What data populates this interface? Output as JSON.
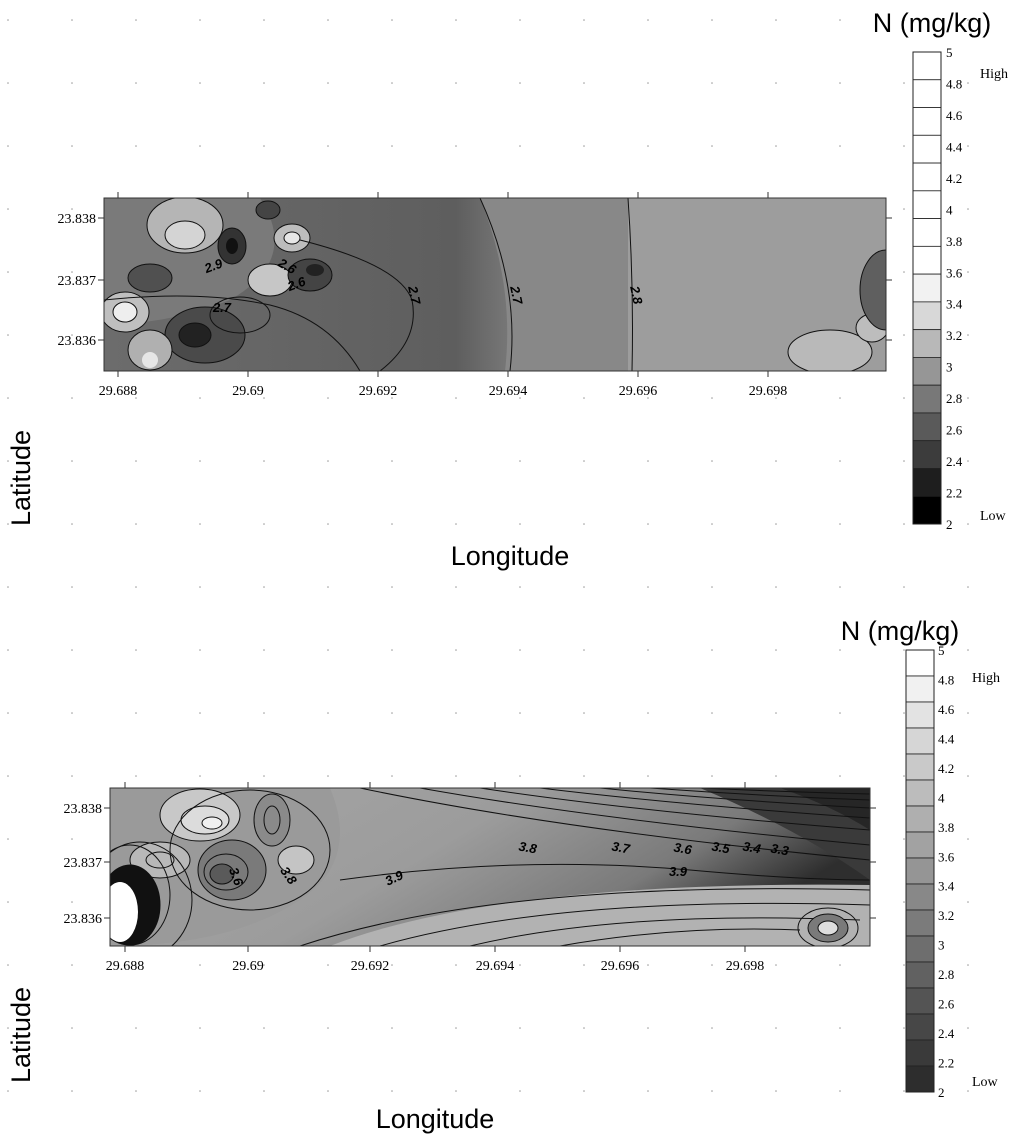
{
  "chart_data": [
    {
      "type": "heatmap",
      "xlabel": "Longitude",
      "ylabel": "Latitude",
      "x_ticks": [
        "29.688",
        "29.69",
        "29.692",
        "29.694",
        "29.696",
        "29.698"
      ],
      "y_ticks": [
        "23.838",
        "23.837",
        "23.836"
      ],
      "xlim": [
        29.6875,
        29.6999
      ],
      "ylim": [
        23.8354,
        23.8383
      ],
      "contour_labels": [
        "2.7",
        "2.7",
        "2.8",
        "2.9",
        "2.6",
        "2.6",
        "2.7"
      ],
      "legend": {
        "title": "N (mg/kg)",
        "labels": [
          "5",
          "4.8",
          "4.6",
          "4.4",
          "4.2",
          "4",
          "3.8",
          "3.6",
          "3.4",
          "3.2",
          "3",
          "2.8",
          "2.6",
          "2.4",
          "2.2",
          "2"
        ],
        "high_label": "High",
        "low_label": "Low"
      }
    },
    {
      "type": "heatmap",
      "xlabel": "Longitude",
      "ylabel": "Latitude",
      "x_ticks": [
        "29.688",
        "29.69",
        "29.692",
        "29.694",
        "29.696",
        "29.698"
      ],
      "y_ticks": [
        "23.838",
        "23.837",
        "23.836"
      ],
      "xlim": [
        29.6875,
        29.6999
      ],
      "ylim": [
        23.8354,
        23.8383
      ],
      "contour_labels": [
        "3.8",
        "3.7",
        "3.6",
        "3.5",
        "3.4",
        "3.3",
        "3.9",
        "3.9",
        "3.8",
        "3.6"
      ],
      "legend": {
        "title": "N (mg/kg)",
        "labels": [
          "5",
          "4.8",
          "4.6",
          "4.4",
          "4.2",
          "4",
          "3.8",
          "3.6",
          "3.4",
          "3.2",
          "3",
          "2.8",
          "2.6",
          "2.4",
          "2.2",
          "2"
        ],
        "high_label": "High",
        "low_label": "Low"
      }
    }
  ],
  "colors": {
    "plot1_legend": [
      "#ffffff",
      "#ffffff",
      "#ffffff",
      "#ffffff",
      "#ffffff",
      "#ffffff",
      "#ffffff",
      "#ffffff",
      "#f2f2f2",
      "#d8d8d8",
      "#b8b8b8",
      "#969696",
      "#787878",
      "#5a5a5a",
      "#3c3c3c",
      "#1e1e1e",
      "#000000"
    ],
    "plot2_legend": [
      "#ffffff",
      "#f1f1f1",
      "#e3e3e3",
      "#d6d6d6",
      "#c9c9c9",
      "#bcbcbc",
      "#afafaf",
      "#a2a2a2",
      "#959595",
      "#888888",
      "#7b7b7b",
      "#6e6e6e",
      "#616161",
      "#545454",
      "#474747",
      "#3a3a3a",
      "#2d2d2d"
    ]
  }
}
